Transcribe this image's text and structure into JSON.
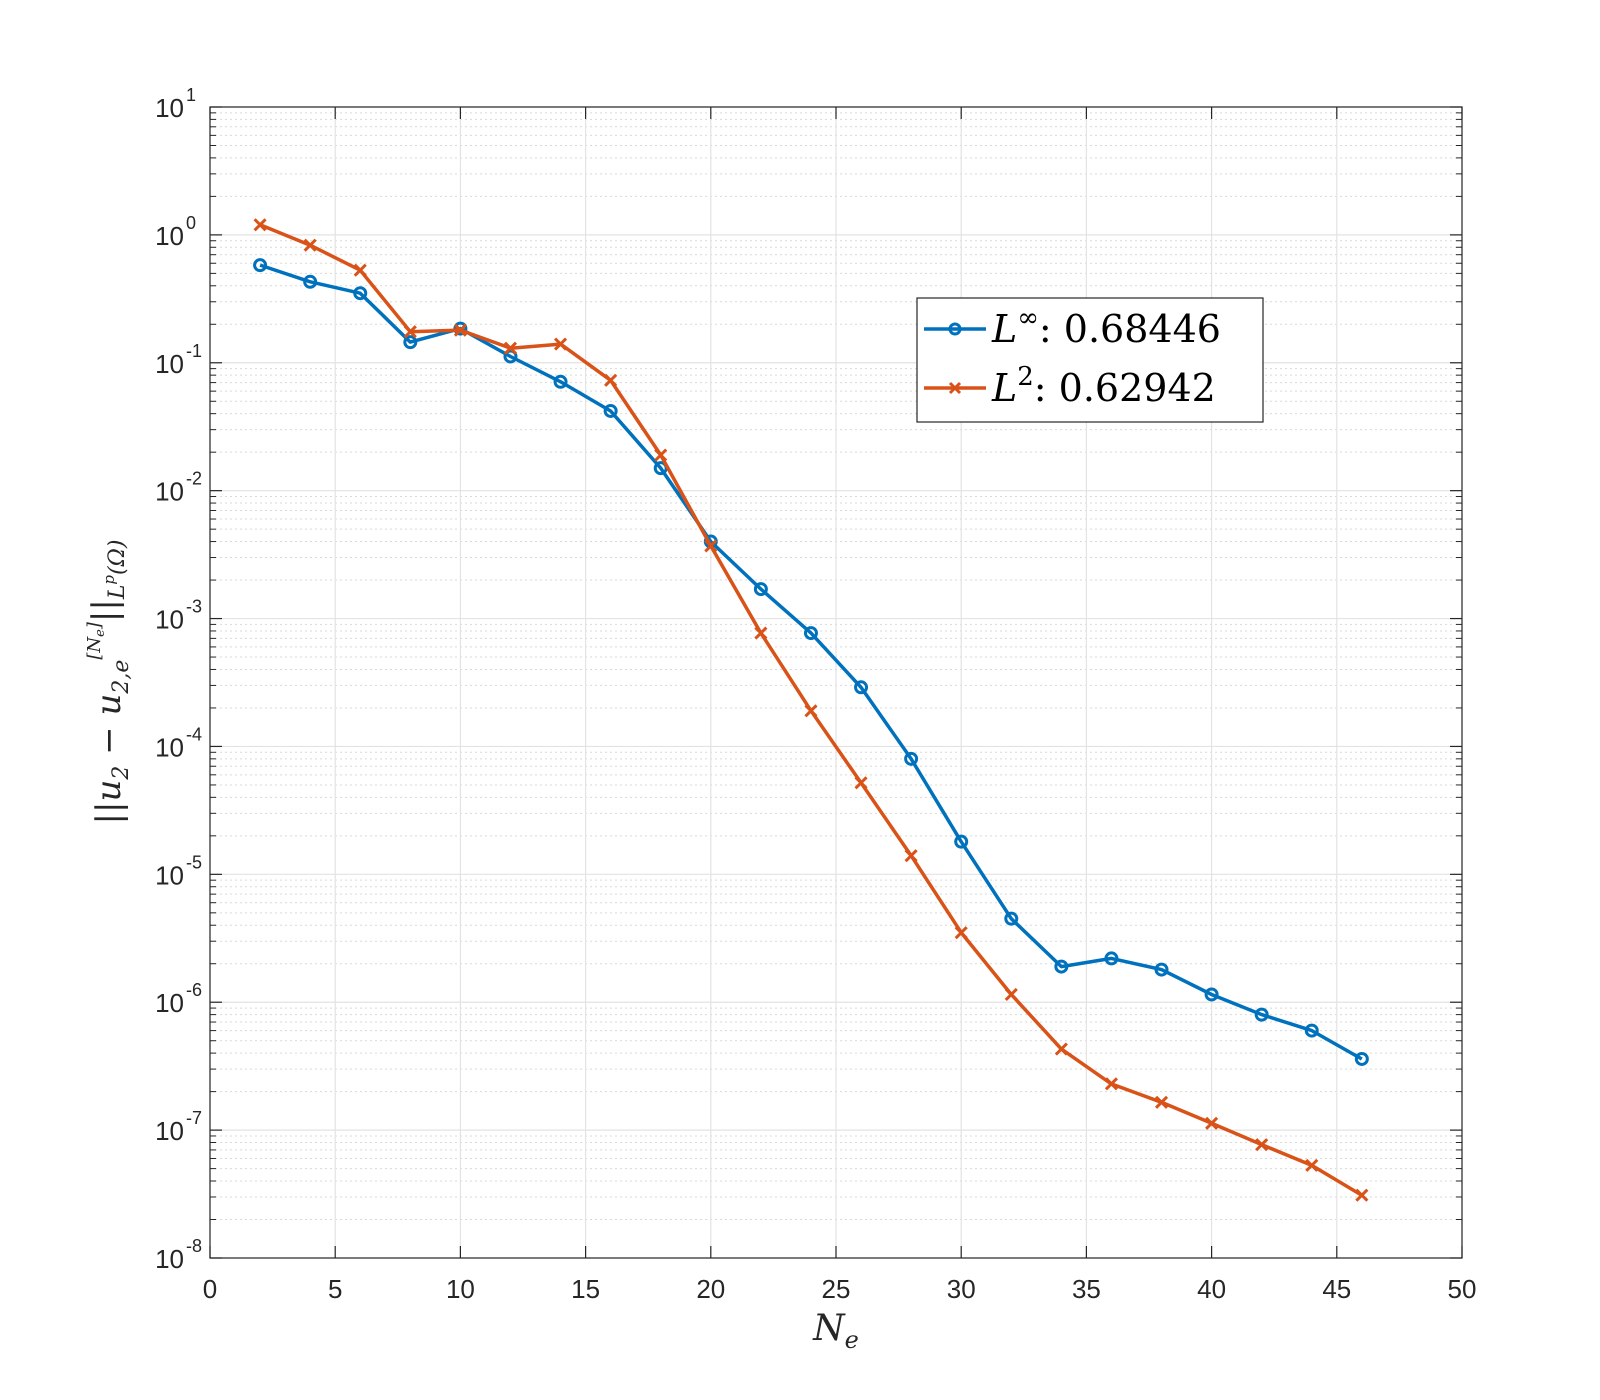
{
  "chart_data": {
    "type": "line",
    "title": "",
    "xlabel": "N_e",
    "ylabel": "||u_2 - u_{2,e}^{[N_e]}||_{L^p(Ω)}",
    "xlim": [
      0,
      50
    ],
    "ylim": [
      1e-08,
      10
    ],
    "yscale": "log",
    "grid": true,
    "x_ticks": [
      "0",
      "5",
      "10",
      "15",
      "20",
      "25",
      "30",
      "35",
      "40",
      "45",
      "50"
    ],
    "y_ticks": [
      "-8",
      "-7",
      "-6",
      "-5",
      "-4",
      "-3",
      "-2",
      "-1",
      "0",
      "1"
    ],
    "y_tick_base": "10",
    "legend_position": "upper-right-center",
    "x": [
      2,
      4,
      6,
      8,
      10,
      12,
      14,
      16,
      18,
      20,
      22,
      24,
      26,
      28,
      30,
      32,
      34,
      36,
      38,
      40,
      42,
      44,
      46
    ],
    "series": [
      {
        "name": "L∞",
        "legend_label": "L",
        "legend_sup": "∞",
        "legend_value": ": 0.68446",
        "color": "#0072BD",
        "marker": "o",
        "values": [
          0.58,
          0.43,
          0.35,
          0.145,
          0.185,
          0.112,
          0.071,
          0.042,
          0.015,
          0.004,
          0.0017,
          0.00077,
          0.00029,
          8e-05,
          1.8e-05,
          4.5e-06,
          1.9e-06,
          2.2e-06,
          1.8e-06,
          1.15e-06,
          8e-07,
          6e-07,
          3.6e-07
        ]
      },
      {
        "name": "L2",
        "legend_label": "L",
        "legend_sup": "2",
        "legend_value": ": 0.62942",
        "color": "#D95319",
        "marker": "x",
        "values": [
          1.2,
          0.83,
          0.53,
          0.175,
          0.18,
          0.13,
          0.14,
          0.073,
          0.019,
          0.0037,
          0.00077,
          0.00019,
          5.2e-05,
          1.4e-05,
          3.5e-06,
          1.15e-06,
          4.3e-07,
          2.3e-07,
          1.65e-07,
          1.13e-07,
          7.7e-08,
          5.3e-08,
          3.1e-08
        ]
      }
    ]
  }
}
